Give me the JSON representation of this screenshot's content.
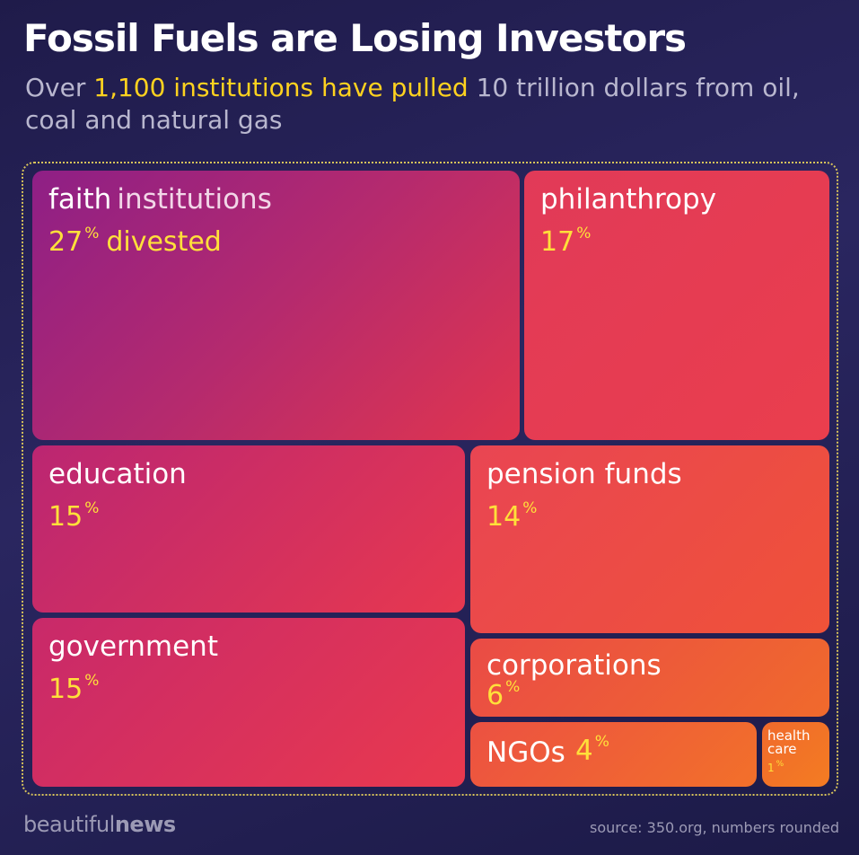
{
  "header": {
    "title": "Fossil Fuels are Losing Investors",
    "subtitle_pre": "Over ",
    "subtitle_highlight": "1,100 institutions have pulled",
    "subtitle_post": " 10 trillion dollars from oil, coal and natural gas"
  },
  "footer": {
    "brand_light": "beautiful",
    "brand_bold": "news",
    "source": "source: 350.org, numbers rounded"
  },
  "tiles": {
    "faith": {
      "label": "faith",
      "label_light": "institutions",
      "value": "27",
      "pct": "%",
      "suffix": "divested"
    },
    "phil": {
      "label": "philanthropy",
      "value": "17",
      "pct": "%"
    },
    "edu": {
      "label": "education",
      "value": "15",
      "pct": "%"
    },
    "pension": {
      "label": "pension funds",
      "value": "14",
      "pct": "%"
    },
    "gov": {
      "label": "government",
      "value": "15",
      "pct": "%"
    },
    "corp": {
      "label": "corporations",
      "value": "6",
      "pct": "%"
    },
    "ngo": {
      "label": "NGOs",
      "value": "4",
      "pct": "%"
    },
    "health": {
      "label": "health care",
      "value": "1",
      "pct": "%"
    }
  },
  "chart_data": {
    "type": "treemap",
    "title": "Fossil Fuels are Losing Investors",
    "subtitle": "Over 1,100 institutions have pulled 10 trillion dollars from oil, coal and natural gas",
    "unit": "% divested",
    "categories": [
      "faith institutions",
      "philanthropy",
      "education",
      "pension funds",
      "government",
      "corporations",
      "NGOs",
      "health care"
    ],
    "values": [
      27,
      17,
      15,
      14,
      15,
      6,
      4,
      1
    ],
    "colors": {
      "faith institutions": "#9c2280",
      "philanthropy": "#e63c52",
      "education": "#d2305f",
      "pension funds": "#ec4b46",
      "government": "#d8325c",
      "corporations": "#ee5a3a",
      "NGOs": "#ef5f38",
      "health care": "#f27426"
    },
    "value_color": "#ffe03a",
    "source": "source: 350.org, numbers rounded"
  }
}
